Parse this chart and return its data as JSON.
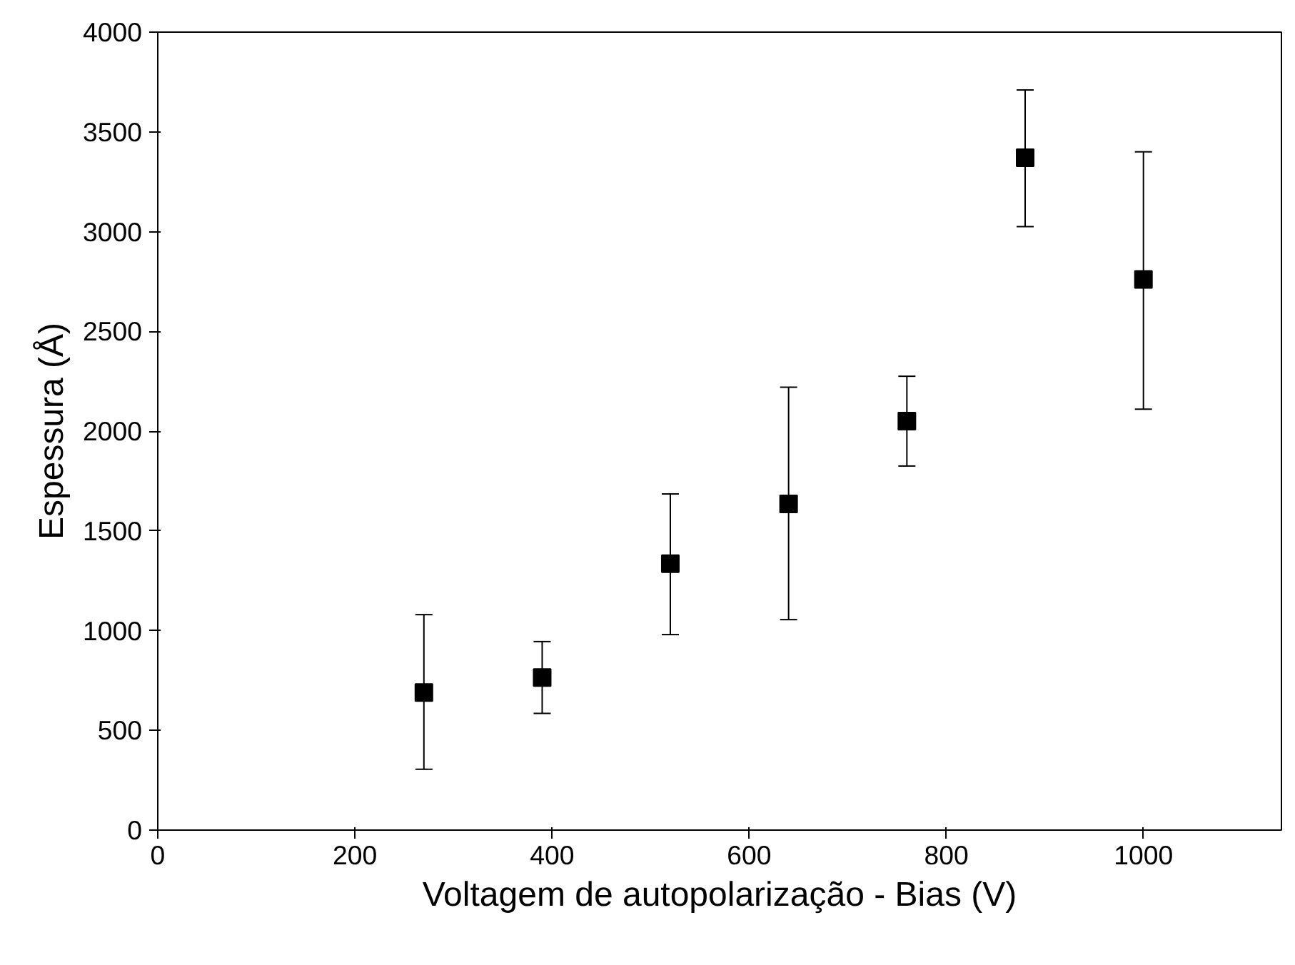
{
  "chart_data": {
    "type": "scatter",
    "xlabel": "Voltagem de autopolarização - Bias (V)",
    "ylabel": "Espessura (Å)",
    "x": [
      270,
      390,
      520,
      640,
      760,
      880,
      1000
    ],
    "series": [
      {
        "color": "#000000",
        "values": [
          690,
          765,
          1335,
          1635,
          2050,
          3370,
          2760
        ],
        "errors": [
          [
            305,
            1080
          ],
          [
            585,
            945
          ],
          [
            980,
            1685
          ],
          [
            1055,
            2220
          ],
          [
            1825,
            2275
          ],
          [
            3025,
            3710
          ],
          [
            2110,
            3400
          ]
        ]
      }
    ],
    "xlim": [
      0,
      1140
    ],
    "ylim": [
      0,
      4000
    ],
    "xticks": [
      0,
      200,
      400,
      600,
      800,
      1000
    ],
    "yticks": [
      0,
      500,
      1000,
      1500,
      2000,
      2500,
      3000,
      3500,
      4000
    ],
    "marker": "square",
    "grid": false
  }
}
